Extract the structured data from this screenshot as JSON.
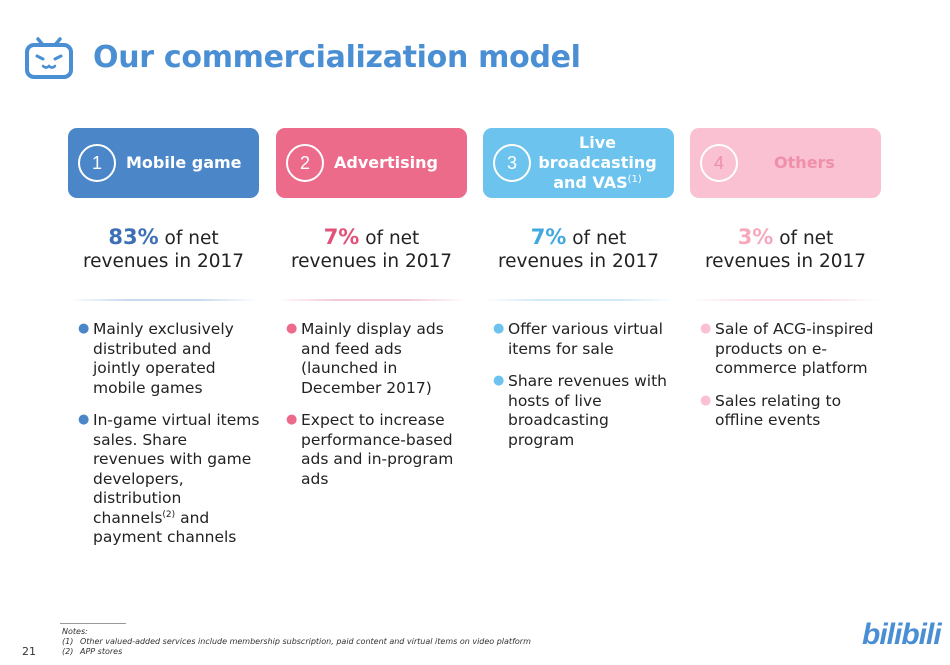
{
  "title": "Our commercialization model",
  "columns": [
    {
      "number": "1",
      "header": "Mobile game",
      "color": "#4a86c8",
      "accent": "#3d6fb5",
      "pct": "83%",
      "stat_line1": "of net",
      "stat_line2": "revenues in 2017",
      "bullets": [
        "Mainly exclusively distributed and jointly operated mobile games",
        "In-game virtual items sales. Share revenues with game developers, distribution channels",
        "and payment channels"
      ],
      "bullet2_sup": "(2)"
    },
    {
      "number": "2",
      "header": "Advertising",
      "color": "#ec6a8a",
      "accent": "#e05279",
      "pct": "7%",
      "stat_line1": "of net",
      "stat_line2": "revenues in 2017",
      "bullets": [
        "Mainly display ads and feed ads (launched in December 2017)",
        "Expect to increase performance-based ads and in-program ads"
      ]
    },
    {
      "number": "3",
      "header_line1": "Live",
      "header_line2": "broadcasting",
      "header_line3": "and VAS",
      "header_sup": "(1)",
      "color": "#6cc3ee",
      "accent": "#3fa9e0",
      "pct": "7%",
      "stat_line1": "of net",
      "stat_line2": "revenues in 2017",
      "bullets": [
        "Offer various virtual items for sale",
        "Share revenues with hosts of live broadcasting program"
      ]
    },
    {
      "number": "4",
      "header": "Others",
      "color": "#f9c1d1",
      "accent": "#f7a8bd",
      "header_text_color": "#ef8fab",
      "pct": "3%",
      "stat_line1": "of net",
      "stat_line2": "revenues in 2017",
      "bullets": [
        "Sale of ACG-inspired products on e-commerce platform",
        "Sales relating to offline events"
      ]
    }
  ],
  "notes": {
    "label": "Notes:",
    "n1_mark": "(1)",
    "n1": "Other valued-added services include membership subscription, paid content and virtual items on video platform",
    "n2_mark": "(2)",
    "n2": "APP stores"
  },
  "page_number": "21",
  "brand": "bilibili"
}
